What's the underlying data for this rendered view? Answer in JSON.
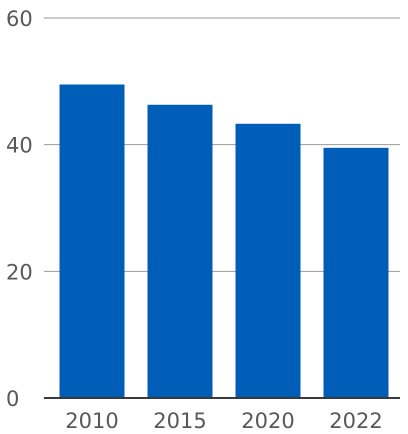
{
  "chart_data": {
    "type": "bar",
    "categories": [
      "2010",
      "2015",
      "2020",
      "2022"
    ],
    "values": [
      49.5,
      46.3,
      43.3,
      39.5
    ],
    "ylim": [
      0,
      60
    ],
    "yticks": [
      0,
      20,
      40,
      60
    ],
    "grid": true,
    "title": "",
    "xlabel": "",
    "ylabel": "",
    "colors": {
      "bar": "#005eb8",
      "gridline": "#9a9a9a",
      "baseline": "#3a3a3a",
      "tick_text": "#595959"
    }
  }
}
